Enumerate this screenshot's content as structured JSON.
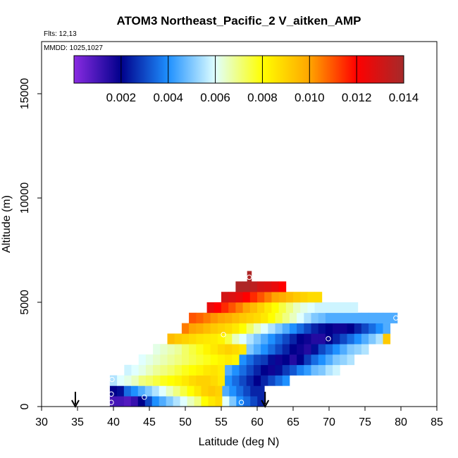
{
  "chart_data": {
    "type": "heatmap",
    "title": "ATOM3 Northeast_Pacific_2 V_aitken_AMP",
    "flights_text": "Flts: 12,13",
    "dates_text": "MMDD: 1025,1027",
    "xlabel": "Latitude (deg N)",
    "ylabel": "Altitude (m)",
    "xlim": [
      30,
      85
    ],
    "ylim": [
      0,
      17500
    ],
    "x_ticks": [
      30,
      35,
      40,
      45,
      50,
      55,
      60,
      65,
      70,
      75,
      80,
      85
    ],
    "y_ticks": [
      0,
      5000,
      10000,
      15000
    ],
    "colorbar": {
      "range": [
        0.0,
        0.014
      ],
      "ticks": [
        "0.002",
        "0.004",
        "0.006",
        "0.008",
        "0.010",
        "0.012",
        "0.014"
      ],
      "colors": [
        "#8a2be2",
        "#00008b",
        "#1e90ff",
        "#e0ffff",
        "#ffff00",
        "#ffa500",
        "#ff0000",
        "#a52a2a"
      ]
    },
    "rows": [
      {
        "alt": [
          0,
          500
        ],
        "lat": [
          39.5,
          61
        ],
        "values": [
          0.001,
          0.001,
          0.0008,
          0.0012,
          0.002,
          0.003,
          0.004,
          0.0045,
          0.005,
          0.0055,
          0.006,
          0.0065,
          0.007,
          0.008,
          0.0085,
          0.0088,
          0.006,
          0.005,
          0.004,
          0.0035,
          0.003,
          0.0025
        ]
      },
      {
        "alt": [
          500,
          1000
        ],
        "lat": [
          39.5,
          61
        ],
        "values": [
          0.002,
          0.0022,
          0.0035,
          0.004,
          0.0045,
          0.005,
          0.0055,
          0.006,
          0.0065,
          0.007,
          0.0075,
          0.008,
          0.0085,
          0.009,
          0.0092,
          0.009,
          0.0045,
          0.004,
          0.0035,
          0.003,
          0.0025,
          0.0025
        ]
      },
      {
        "alt": [
          1000,
          1500
        ],
        "lat": [
          39.5,
          64.5
        ],
        "values": [
          0.0055,
          0.006,
          0.0062,
          0.0065,
          0.007,
          0.0072,
          0.0075,
          0.0078,
          0.008,
          0.0082,
          0.0085,
          0.0088,
          0.009,
          0.009,
          0.0088,
          0.0085,
          0.004,
          0.0035,
          0.003,
          0.0025,
          0.002,
          0.0025,
          0.003,
          0.0035,
          0.004
        ]
      },
      {
        "alt": [
          1500,
          2000
        ],
        "lat": [
          41.5,
          71.5
        ],
        "values": [
          0.0058,
          0.006,
          0.0062,
          0.0065,
          0.0068,
          0.007,
          0.0072,
          0.0075,
          0.0078,
          0.008,
          0.0082,
          0.0085,
          0.0086,
          0.0084,
          0.0045,
          0.004,
          0.0035,
          0.003,
          0.0025,
          0.002,
          0.0018,
          0.0022,
          0.0028,
          0.0032,
          0.0038,
          0.0042,
          0.0048,
          0.005,
          0.0055,
          0.0058
        ]
      },
      {
        "alt": [
          2000,
          2500
        ],
        "lat": [
          43.5,
          73.5
        ],
        "values": [
          0.006,
          0.0062,
          0.0064,
          0.0066,
          0.0068,
          0.007,
          0.0072,
          0.0074,
          0.0076,
          0.0078,
          0.008,
          0.0082,
          0.0084,
          0.0082,
          0.004,
          0.0035,
          0.003,
          0.0028,
          0.0022,
          0.0018,
          0.002,
          0.0015,
          0.002,
          0.0028,
          0.0035,
          0.004,
          0.0045,
          0.005,
          0.0052,
          0.0055
        ]
      },
      {
        "alt": [
          2500,
          3000
        ],
        "lat": [
          45.5,
          75.5
        ],
        "values": [
          0.0062,
          0.0064,
          0.0066,
          0.0068,
          0.0072,
          0.0075,
          0.0078,
          0.0082,
          0.0085,
          0.0088,
          0.009,
          0.0088,
          0.0085,
          0.005,
          0.0045,
          0.004,
          0.0035,
          0.003,
          0.0025,
          0.002,
          0.0018,
          0.0015,
          0.0022,
          0.003,
          0.0035,
          0.004,
          0.0045,
          0.005,
          0.0052,
          0.0055
        ]
      },
      {
        "alt": [
          3000,
          3500
        ],
        "lat": [
          47.5,
          78.5
        ],
        "values": [
          0.0095,
          0.0092,
          0.009,
          0.0088,
          0.0086,
          0.0085,
          0.0084,
          0.0082,
          0.0075,
          0.0065,
          0.006,
          0.0055,
          0.005,
          0.0045,
          0.004,
          0.0035,
          0.003,
          0.0025,
          0.002,
          0.0018,
          0.0015,
          0.0015,
          0.002,
          0.0025,
          0.003,
          0.0035,
          0.004,
          0.0045,
          0.005,
          0.0055,
          0.0092
        ]
      },
      {
        "alt": [
          3500,
          4000
        ],
        "lat": [
          49.5,
          78.5
        ],
        "values": [
          0.0105,
          0.01,
          0.0098,
          0.0095,
          0.0092,
          0.009,
          0.0088,
          0.0085,
          0.008,
          0.0072,
          0.0065,
          0.006,
          0.0055,
          0.005,
          0.0045,
          0.004,
          0.0035,
          0.003,
          0.0025,
          0.0022,
          0.002,
          0.0018,
          0.0018,
          0.002,
          0.0025,
          0.003,
          0.0035,
          0.004,
          0.0045
        ]
      },
      {
        "alt": [
          4000,
          4500
        ],
        "lat": [
          50.5,
          79.5
        ],
        "values": [
          0.011,
          0.0108,
          0.0105,
          0.0102,
          0.01,
          0.0098,
          0.0095,
          0.0092,
          0.009,
          0.0088,
          0.0085,
          0.008,
          0.0075,
          0.007,
          0.0065,
          0.006,
          0.0055,
          0.005,
          0.0048,
          0.0045,
          0.0045,
          0.0045,
          0.0045,
          0.0045,
          0.0045,
          0.0045,
          0.0045,
          0.0045,
          0.0045
        ]
      },
      {
        "alt": [
          4500,
          5000
        ],
        "lat": [
          53,
          74
        ],
        "values": [
          0.0125,
          0.012,
          0.0115,
          0.011,
          0.0105,
          0.01,
          0.0095,
          0.009,
          0.0085,
          0.008,
          0.0075,
          0.007,
          0.0065,
          0.0062,
          0.006,
          0.0058,
          0.0058,
          0.0058,
          0.0058,
          0.0058,
          0.0058
        ]
      },
      {
        "alt": [
          5000,
          5500
        ],
        "lat": [
          55,
          69
        ],
        "values": [
          0.013,
          0.0128,
          0.0125,
          0.012,
          0.0115,
          0.011,
          0.0105,
          0.01,
          0.0098,
          0.0095,
          0.0092,
          0.009,
          0.0088,
          0.0088
        ]
      },
      {
        "alt": [
          5500,
          6000
        ],
        "lat": [
          57,
          64
        ],
        "values": [
          0.0138,
          0.0138,
          0.0135,
          0.013,
          0.0128,
          0.0125,
          0.012
        ]
      },
      {
        "alt": [
          6000,
          6500
        ],
        "lat": [
          58.6,
          59.2
        ],
        "values": [
          0.0138
        ]
      }
    ],
    "markers": [
      {
        "lat": 39.7,
        "alt": 200
      },
      {
        "lat": 39.7,
        "alt": 600
      },
      {
        "lat": 39.8,
        "alt": 1300
      },
      {
        "lat": 44.3,
        "alt": 450
      },
      {
        "lat": 55.3,
        "alt": 3450
      },
      {
        "lat": 57.8,
        "alt": 200
      },
      {
        "lat": 69.9,
        "alt": 3250
      },
      {
        "lat": 79.3,
        "alt": 4250
      },
      {
        "lat": 58.9,
        "alt": 6200
      }
    ],
    "arrows": [
      {
        "lat": 34.7
      },
      {
        "lat": 61.1
      }
    ]
  }
}
